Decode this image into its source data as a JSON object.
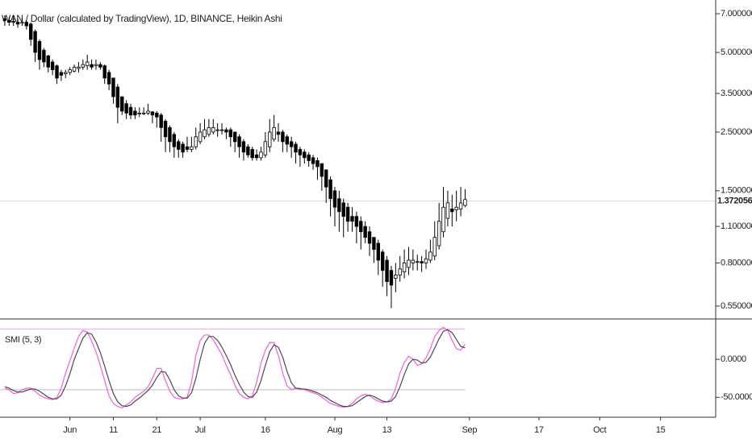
{
  "chart_data": [
    {
      "type": "candlestick",
      "title": "WAN / Dollar (calculated by TradingView), 1D, BINANCE, Heikin Ashi",
      "log_scale": true,
      "up_color": "#ffffff",
      "down_color": "#000000",
      "ylim": [
        0.495,
        7.89
      ],
      "yticks": [
        {
          "value": 7,
          "label": "7.00000000"
        },
        {
          "value": 5,
          "label": "5.00000000"
        },
        {
          "value": 3.5,
          "label": "3.50000000"
        },
        {
          "value": 2.5,
          "label": "2.50000000"
        },
        {
          "value": 1.5,
          "label": "1.50000000"
        },
        {
          "value": 1.1,
          "label": "1.10000000"
        },
        {
          "value": 0.8,
          "label": "0.80000000"
        },
        {
          "value": 0.55,
          "label": "0.55000000"
        }
      ],
      "last_price": 1.37205626,
      "candles": [
        [
          6.7,
          6.9,
          6.3,
          6.6
        ],
        [
          6.6,
          6.8,
          6.3,
          6.5
        ],
        [
          6.55,
          6.9,
          6.3,
          6.5
        ],
        [
          6.5,
          6.7,
          6.2,
          6.4
        ],
        [
          6.45,
          6.8,
          6.3,
          6.5
        ],
        [
          6.5,
          6.6,
          6.1,
          6.3
        ],
        [
          6.4,
          6.5,
          5.3,
          5.6
        ],
        [
          6.0,
          6.1,
          4.6,
          5.0
        ],
        [
          5.5,
          5.6,
          4.3,
          4.7
        ],
        [
          5.1,
          5.2,
          4.4,
          4.6
        ],
        [
          4.85,
          4.9,
          4.2,
          4.4
        ],
        [
          4.6,
          4.7,
          4.1,
          4.3
        ],
        [
          4.45,
          4.5,
          3.8,
          4.0
        ],
        [
          4.2,
          4.3,
          3.9,
          4.1
        ],
        [
          4.15,
          4.3,
          4.0,
          4.2
        ],
        [
          4.2,
          4.4,
          4.1,
          4.3
        ],
        [
          4.25,
          4.5,
          4.2,
          4.4
        ],
        [
          4.35,
          4.6,
          4.2,
          4.4
        ],
        [
          4.4,
          4.7,
          4.3,
          4.5
        ],
        [
          4.45,
          4.9,
          4.3,
          4.6
        ],
        [
          4.5,
          4.7,
          4.3,
          4.4
        ],
        [
          4.45,
          4.7,
          4.3,
          4.5
        ],
        [
          4.5,
          4.6,
          4.3,
          4.4
        ],
        [
          4.45,
          4.5,
          3.8,
          4.0
        ],
        [
          4.2,
          4.3,
          3.6,
          3.8
        ],
        [
          4.0,
          4.0,
          3.2,
          3.4
        ],
        [
          3.7,
          3.8,
          2.7,
          3.1
        ],
        [
          3.4,
          3.4,
          2.9,
          3.0
        ],
        [
          3.2,
          3.3,
          2.8,
          2.95
        ],
        [
          3.1,
          3.2,
          2.8,
          2.9
        ],
        [
          3.0,
          3.1,
          2.8,
          2.9
        ],
        [
          2.95,
          3.1,
          2.85,
          2.95
        ],
        [
          2.95,
          3.1,
          2.9,
          2.95
        ],
        [
          2.95,
          3.2,
          2.9,
          3.0
        ],
        [
          2.98,
          3.0,
          2.7,
          2.9
        ],
        [
          2.95,
          3.0,
          2.6,
          2.85
        ],
        [
          2.9,
          2.95,
          2.3,
          2.6
        ],
        [
          2.75,
          2.8,
          2.1,
          2.4
        ],
        [
          2.6,
          2.65,
          2.1,
          2.3
        ],
        [
          2.45,
          2.5,
          2.0,
          2.2
        ],
        [
          2.3,
          2.35,
          2.0,
          2.15
        ],
        [
          2.25,
          2.3,
          2.0,
          2.1
        ],
        [
          2.2,
          2.4,
          2.1,
          2.15
        ],
        [
          2.15,
          2.4,
          2.1,
          2.2
        ],
        [
          2.2,
          2.6,
          2.15,
          2.4
        ],
        [
          2.3,
          2.7,
          2.25,
          2.5
        ],
        [
          2.4,
          2.8,
          2.35,
          2.55
        ],
        [
          2.45,
          2.8,
          2.4,
          2.6
        ],
        [
          2.5,
          2.8,
          2.45,
          2.6
        ],
        [
          2.55,
          2.7,
          2.4,
          2.55
        ],
        [
          2.55,
          2.7,
          2.45,
          2.55
        ],
        [
          2.55,
          2.6,
          2.35,
          2.5
        ],
        [
          2.55,
          2.6,
          2.2,
          2.4
        ],
        [
          2.5,
          2.5,
          2.1,
          2.3
        ],
        [
          2.4,
          2.45,
          2.0,
          2.2
        ],
        [
          2.3,
          2.35,
          1.95,
          2.1
        ],
        [
          2.2,
          2.25,
          2.0,
          2.05
        ],
        [
          2.15,
          2.2,
          1.95,
          2.0
        ],
        [
          2.05,
          2.15,
          1.95,
          2.0
        ],
        [
          2.0,
          2.2,
          1.95,
          2.1
        ],
        [
          2.05,
          2.5,
          2.0,
          2.3
        ],
        [
          2.2,
          2.8,
          2.1,
          2.5
        ],
        [
          2.35,
          2.9,
          2.3,
          2.6
        ],
        [
          2.5,
          2.7,
          2.3,
          2.45
        ],
        [
          2.5,
          2.55,
          2.1,
          2.3
        ],
        [
          2.4,
          2.45,
          2.1,
          2.25
        ],
        [
          2.3,
          2.4,
          2.0,
          2.2
        ],
        [
          2.25,
          2.3,
          1.9,
          2.1
        ],
        [
          2.15,
          2.2,
          1.85,
          2.05
        ],
        [
          2.1,
          2.15,
          1.9,
          2.0
        ],
        [
          2.05,
          2.1,
          1.85,
          1.95
        ],
        [
          2.0,
          2.05,
          1.8,
          1.9
        ],
        [
          1.95,
          2.0,
          1.65,
          1.85
        ],
        [
          1.9,
          1.9,
          1.5,
          1.7
        ],
        [
          1.8,
          1.8,
          1.35,
          1.55
        ],
        [
          1.65,
          1.7,
          1.2,
          1.4
        ],
        [
          1.5,
          1.55,
          1.1,
          1.3
        ],
        [
          1.4,
          1.5,
          1.05,
          1.25
        ],
        [
          1.35,
          1.4,
          1.0,
          1.2
        ],
        [
          1.3,
          1.35,
          1.05,
          1.15
        ],
        [
          1.2,
          1.3,
          1.05,
          1.15
        ],
        [
          1.2,
          1.25,
          0.95,
          1.1
        ],
        [
          1.15,
          1.2,
          0.9,
          1.05
        ],
        [
          1.1,
          1.15,
          0.95,
          1.0
        ],
        [
          1.05,
          1.1,
          0.85,
          0.95
        ],
        [
          1.0,
          1.0,
          0.8,
          0.9
        ],
        [
          0.95,
          0.98,
          0.72,
          0.82
        ],
        [
          0.88,
          0.9,
          0.65,
          0.75
        ],
        [
          0.82,
          0.85,
          0.6,
          0.68
        ],
        [
          0.75,
          0.78,
          0.54,
          0.66
        ],
        [
          0.7,
          0.8,
          0.62,
          0.72
        ],
        [
          0.72,
          0.85,
          0.68,
          0.76
        ],
        [
          0.74,
          0.9,
          0.7,
          0.8
        ],
        [
          0.77,
          0.92,
          0.72,
          0.82
        ],
        [
          0.8,
          0.9,
          0.75,
          0.82
        ],
        [
          0.81,
          0.86,
          0.75,
          0.81
        ],
        [
          0.81,
          0.85,
          0.74,
          0.8
        ],
        [
          0.8,
          0.9,
          0.76,
          0.83
        ],
        [
          0.82,
          0.98,
          0.8,
          0.88
        ],
        [
          0.85,
          1.15,
          0.82,
          1.0
        ],
        [
          0.93,
          1.35,
          0.9,
          1.15
        ],
        [
          1.05,
          1.55,
          1.0,
          1.3
        ],
        [
          1.18,
          1.5,
          1.1,
          1.35
        ],
        [
          1.28,
          1.45,
          1.1,
          1.25
        ],
        [
          1.27,
          1.5,
          1.15,
          1.3
        ],
        [
          1.28,
          1.55,
          1.2,
          1.35
        ],
        [
          1.32,
          1.52,
          1.3,
          1.39
        ]
      ]
    },
    {
      "type": "line",
      "title": "SMI (5, 3)",
      "xlim": [
        -1.1,
        163.7
      ],
      "xticks": [
        {
          "value": 15,
          "label": "Jun"
        },
        {
          "value": 25,
          "label": "11"
        },
        {
          "value": 35,
          "label": "21"
        },
        {
          "value": 45,
          "label": "Jul"
        },
        {
          "value": 60,
          "label": "16"
        },
        {
          "value": 76,
          "label": "Aug"
        },
        {
          "value": 88,
          "label": "13"
        },
        {
          "value": 107,
          "label": "Sep"
        },
        {
          "value": 123,
          "label": "17"
        },
        {
          "value": 137,
          "label": "Oct"
        },
        {
          "value": 151,
          "label": "15"
        }
      ],
      "ylim": [
        -73,
        51
      ],
      "yticks": [
        {
          "value": 0,
          "label": "0.0000"
        },
        {
          "value": -50,
          "label": "-50.0000"
        }
      ],
      "hlines": [
        {
          "value": 40,
          "color": "#f4a3e6"
        },
        {
          "value": -40,
          "color": "#bdbdbd"
        }
      ],
      "series": [
        {
          "color": "#f25fdc",
          "values": [
            -38,
            -40,
            -45,
            -44,
            -40,
            -38,
            -38,
            -42,
            -47,
            -50,
            -52,
            -53,
            -50,
            -38,
            -18,
            -2,
            15,
            30,
            38,
            36,
            24,
            10,
            -8,
            -28,
            -48,
            -58,
            -62,
            -64,
            -60,
            -56,
            -50,
            -46,
            -42,
            -36,
            -25,
            -12,
            -12,
            -28,
            -42,
            -50,
            -52,
            -52,
            -50,
            -30,
            5,
            25,
            32,
            32,
            26,
            16,
            6,
            -8,
            -20,
            -34,
            -45,
            -50,
            -52,
            -48,
            -30,
            -5,
            12,
            22,
            22,
            5,
            -18,
            -35,
            -40,
            -38,
            -38,
            -40,
            -42,
            -44,
            -46,
            -50,
            -54,
            -58,
            -60,
            -62,
            -63,
            -62,
            -58,
            -52,
            -48,
            -46,
            -48,
            -52,
            -55,
            -57,
            -56,
            -52,
            -38,
            -18,
            -4,
            4,
            0,
            -8,
            -6,
            2,
            14,
            30,
            38,
            42,
            38,
            25,
            14,
            12,
            20
          ]
        },
        {
          "color": "#4a4a4a",
          "values": [
            -36,
            -38,
            -41,
            -43,
            -43,
            -41,
            -39,
            -39,
            -42,
            -46,
            -50,
            -52,
            -52,
            -47,
            -35,
            -19,
            0,
            14,
            28,
            35,
            33,
            23,
            9,
            -9,
            -28,
            -45,
            -56,
            -61,
            -62,
            -60,
            -55,
            -51,
            -46,
            -41,
            -34,
            -24,
            -16,
            -17,
            -27,
            -40,
            -48,
            -51,
            -51,
            -44,
            -25,
            0,
            21,
            30,
            30,
            25,
            16,
            5,
            -7,
            -21,
            -33,
            -43,
            -49,
            -50,
            -43,
            -28,
            -8,
            10,
            19,
            16,
            3,
            -16,
            -31,
            -38,
            -39,
            -39,
            -40,
            -42,
            -44,
            -47,
            -50,
            -54,
            -57,
            -60,
            -62,
            -62,
            -61,
            -57,
            -53,
            -49,
            -47,
            -49,
            -52,
            -55,
            -56,
            -55,
            -49,
            -36,
            -20,
            -6,
            0,
            -1,
            -5,
            -4,
            3,
            15,
            27,
            37,
            39,
            35,
            26,
            17,
            15
          ]
        }
      ]
    }
  ]
}
